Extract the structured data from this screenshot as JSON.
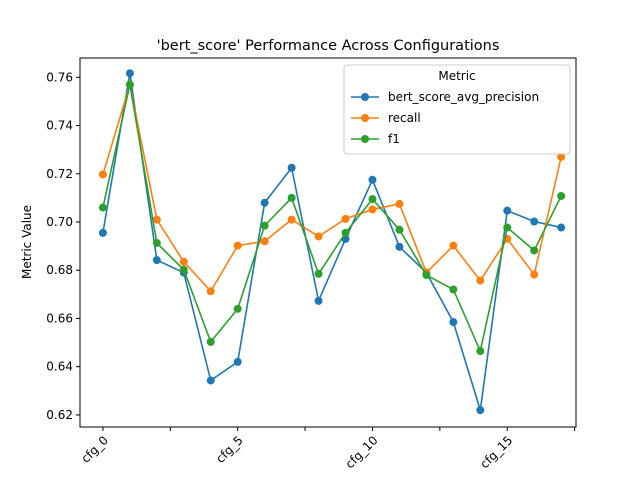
{
  "chart_data": {
    "type": "line",
    "title": "'bert_score' Performance Across Configurations",
    "xlabel": "",
    "ylabel": "Metric Value",
    "x": [
      "cfg_0",
      "cfg_1",
      "cfg_2",
      "cfg_3",
      "cfg_4",
      "cfg_5",
      "cfg_6",
      "cfg_7",
      "cfg_8",
      "cfg_9",
      "cfg_10",
      "cfg_11",
      "cfg_12",
      "cfg_13",
      "cfg_14",
      "cfg_15",
      "cfg_16",
      "cfg_17"
    ],
    "x_tick_labels": [
      {
        "index": 0,
        "label": "cfg_0"
      },
      {
        "index": 5,
        "label": "cfg_5"
      },
      {
        "index": 10,
        "label": "cfg_10"
      },
      {
        "index": 15,
        "label": "cfg_15"
      }
    ],
    "x_minor_ticks": [
      2.5,
      7.5,
      12.5,
      17.5
    ],
    "ylim": [
      0.615,
      0.768
    ],
    "y_ticks": [
      0.62,
      0.64,
      0.66,
      0.68,
      0.7,
      0.72,
      0.74,
      0.76
    ],
    "y_tick_labels": [
      "0.62",
      "0.64",
      "0.66",
      "0.68",
      "0.70",
      "0.72",
      "0.74",
      "0.76"
    ],
    "grid": false,
    "legend": {
      "title": "Metric",
      "placement": "top-right"
    },
    "series": [
      {
        "name": "bert_score_avg_precision",
        "color": "#1f77b4",
        "values": [
          0.6955,
          0.7617,
          0.6842,
          0.679,
          0.6343,
          0.642,
          0.708,
          0.7225,
          0.6673,
          0.693,
          0.7175,
          0.6897,
          0.679,
          0.6585,
          0.622,
          0.7047,
          0.7002,
          0.6977
        ]
      },
      {
        "name": "recall",
        "color": "#ff7f0e",
        "values": [
          0.7197,
          0.757,
          0.701,
          0.6835,
          0.6713,
          0.6902,
          0.692,
          0.701,
          0.694,
          0.7013,
          0.7052,
          0.7075,
          0.679,
          0.6902,
          0.6757,
          0.693,
          0.6782,
          0.727
        ]
      },
      {
        "name": "f1",
        "color": "#2ca02c",
        "values": [
          0.706,
          0.757,
          0.6913,
          0.6802,
          0.6503,
          0.664,
          0.6985,
          0.71,
          0.6785,
          0.6955,
          0.7095,
          0.6968,
          0.678,
          0.672,
          0.6465,
          0.6977,
          0.6882,
          0.7108
        ]
      }
    ]
  }
}
